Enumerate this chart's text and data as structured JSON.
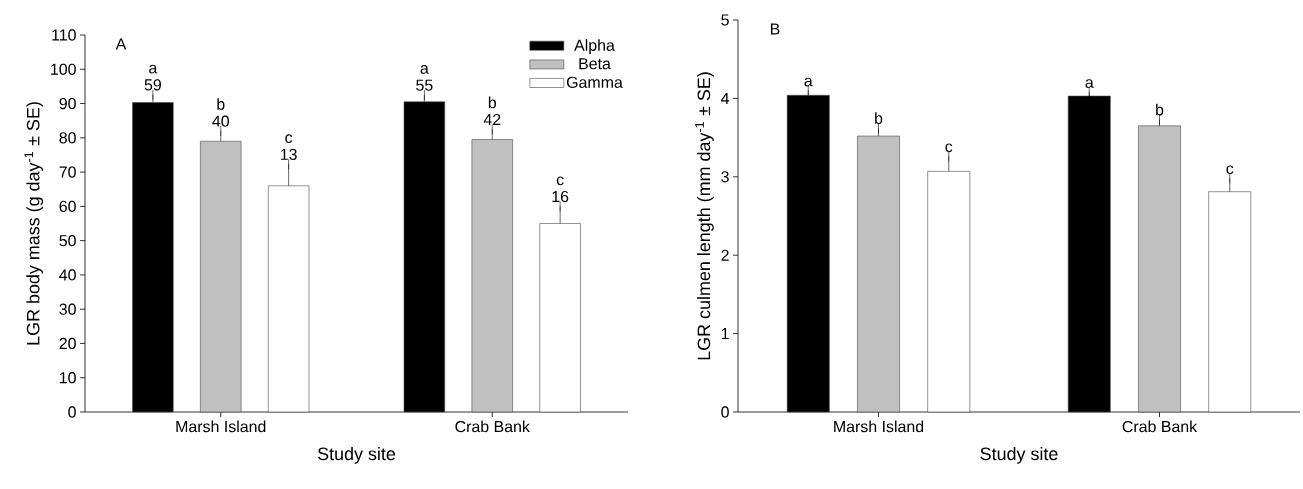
{
  "chart_data": [
    {
      "type": "bar",
      "categories": [
        "Marsh Island",
        "Crab Bank"
      ],
      "xlabel": "Study site",
      "ylabel": "LGR body mass (g day$^{-1}$ ± SE)",
      "ylim": [
        0,
        110
      ],
      "yticks": [
        0,
        10,
        20,
        30,
        40,
        50,
        60,
        70,
        80,
        90,
        100,
        110
      ],
      "legend": "top right",
      "annotations": [
        "A"
      ],
      "series": [
        {
          "name": "Alpha",
          "color": "#000000",
          "values": [
            90.3,
            90.5
          ],
          "errors": [
            [
              90.3,
              92.6
            ],
            [
              90.5,
              92.5
            ]
          ],
          "value_labels": [
            "a 59",
            "a 55"
          ]
        },
        {
          "name": "Beta",
          "color": "#c0c0c0",
          "values": [
            79,
            79.5
          ],
          "errors": [
            [
              79,
              82
            ],
            [
              79.5,
              82.5
            ]
          ],
          "value_labels": [
            "b 40",
            "b 42"
          ]
        },
        {
          "name": "Gamma",
          "color": "#ffffff",
          "values": [
            66,
            55
          ],
          "errors": [
            [
              66,
              72.3
            ],
            [
              55,
              60
            ]
          ],
          "value_labels": [
            "c 13",
            "c 16"
          ]
        }
      ]
    },
    {
      "type": "bar",
      "categories": [
        "Marsh Island",
        "Crab Bank"
      ],
      "xlabel": "Study site",
      "ylabel": "LGR culmen length  (mm day$^{-1}$ ± SE)",
      "ylim": [
        0,
        5
      ],
      "yticks": [
        0,
        1,
        2,
        3,
        4,
        5
      ],
      "annotations": [
        "B"
      ],
      "series": [
        {
          "color": "#000000",
          "values": [
            4.04,
            4.03
          ],
          "errors": [
            [
              4.04,
              4.1
            ],
            [
              4.03,
              4.08
            ]
          ],
          "value_labels": [
            "a",
            "a"
          ]
        },
        {
          "color": "#c0c0c0",
          "values": [
            3.52,
            3.65
          ],
          "errors": [
            [
              3.52,
              3.62
            ],
            [
              3.65,
              3.73
            ]
          ],
          "value_labels": [
            "b",
            "b"
          ]
        },
        {
          "color": "#ffffff",
          "values": [
            3.07,
            2.81
          ],
          "errors": [
            [
              3.07,
              3.26
            ],
            [
              2.81,
              2.98
            ]
          ],
          "value_labels": [
            "c",
            "c"
          ]
        }
      ]
    }
  ]
}
